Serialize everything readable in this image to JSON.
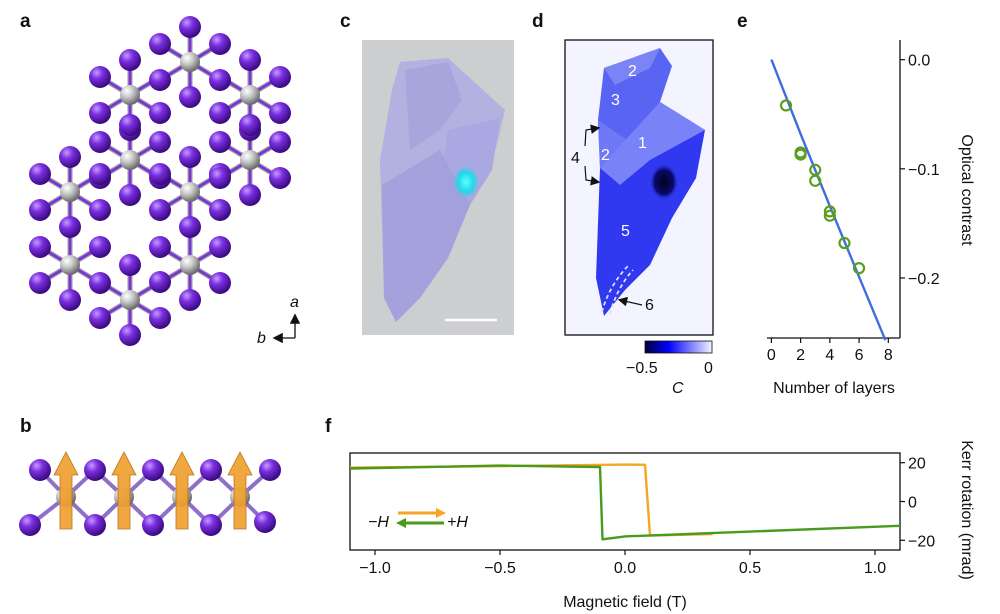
{
  "panels": {
    "a": "a",
    "b": "b",
    "c": "c",
    "d": "d",
    "e": "e",
    "f": "f"
  },
  "panel_a": {
    "axis_a": "a",
    "axis_b": "b"
  },
  "panel_d": {
    "region_labels": [
      "2",
      "3",
      "1",
      "2",
      "5"
    ],
    "arrow_label_4": "4",
    "arrow_label_6": "6",
    "colorbar_min": "−0.5",
    "colorbar_max": "0",
    "colorbar_symbol": "C",
    "colors": {
      "dark": "#00003c",
      "light": "#f3f4ff"
    }
  },
  "chart_data": [
    {
      "panel": "e",
      "type": "scatter",
      "xlabel": "Number of layers",
      "ylabel": "Optical contrast",
      "xlim": [
        -0.3,
        8.8
      ],
      "ylim": [
        -0.255,
        0.018
      ],
      "xticks": [
        "0",
        "2",
        "4",
        "6",
        "8"
      ],
      "yticks": [
        "0.0",
        "−0.1",
        "−0.2"
      ],
      "series": [
        {
          "name": "data",
          "marker": "open-circle",
          "color": "#5a9e1f",
          "x": [
            1,
            2,
            2,
            3,
            3,
            4,
            4,
            5,
            6
          ],
          "y": [
            -0.042,
            -0.085,
            -0.087,
            -0.101,
            -0.111,
            -0.139,
            -0.143,
            -0.168,
            -0.191
          ]
        },
        {
          "name": "fit",
          "style": "line",
          "color": "#3f6de0",
          "x": [
            0,
            2,
            4,
            6,
            7.8
          ],
          "y": [
            0,
            -0.068,
            -0.134,
            -0.199,
            -0.257
          ]
        }
      ]
    },
    {
      "panel": "f",
      "type": "line",
      "xlabel": "Magnetic field (T)",
      "ylabel": "Kerr rotation (mrad)",
      "xlim": [
        -1.1,
        1.1
      ],
      "ylim": [
        -25,
        25
      ],
      "xticks": [
        "−1.0",
        "−0.5",
        "0.0",
        "0.5",
        "1.0"
      ],
      "yticks": [
        "20",
        "0",
        "−20"
      ],
      "legend": {
        "left": "−H",
        "right": "+H"
      },
      "series": [
        {
          "name": "sweep up",
          "color": "#f5a623",
          "x": [
            -1.1,
            -0.5,
            0.0,
            0.08,
            0.1,
            0.35
          ],
          "y": [
            17.5,
            18.2,
            19.0,
            18.9,
            -17.5,
            -16.8
          ]
        },
        {
          "name": "sweep down",
          "color": "#4a9a1e",
          "x": [
            1.1,
            0.5,
            0.0,
            -0.09,
            -0.1,
            -0.5,
            -1.1
          ],
          "y": [
            -12.5,
            -15.5,
            -18.0,
            -19.5,
            17.8,
            18.5,
            17.0
          ]
        }
      ]
    }
  ]
}
